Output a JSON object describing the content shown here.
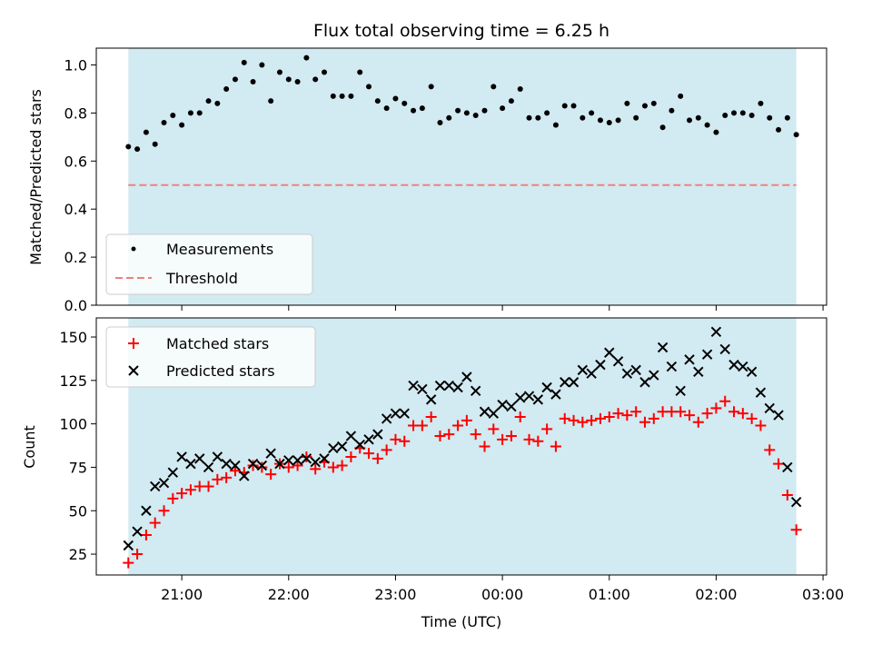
{
  "title": "Flux total observing time = 6.25 h",
  "colors": {
    "observing_band": "#add8e6",
    "measurement": "#000000",
    "threshold": "#f08080",
    "matched": "#ff0000",
    "predicted": "#000000"
  },
  "chart_data": [
    {
      "type": "scatter",
      "ylabel": "Matched/Predicted stars",
      "xlabel": "",
      "ylim": [
        0,
        1.07
      ],
      "yticks": [
        0.0,
        0.2,
        0.4,
        0.6,
        0.8,
        1.0
      ],
      "ytick_labels": [
        "0.0",
        "0.2",
        "0.4",
        "0.6",
        "0.8",
        "1.0"
      ],
      "legend_position": "lower-left",
      "threshold": 0.5,
      "series": [
        {
          "name": "Measurements",
          "marker": "dot",
          "x": [
            "20:30",
            "20:35",
            "20:40",
            "20:45",
            "20:50",
            "20:55",
            "21:00",
            "21:05",
            "21:10",
            "21:15",
            "21:20",
            "21:25",
            "21:30",
            "21:35",
            "21:40",
            "21:45",
            "21:50",
            "21:55",
            "22:00",
            "22:05",
            "22:10",
            "22:15",
            "22:20",
            "22:25",
            "22:30",
            "22:35",
            "22:40",
            "22:45",
            "22:50",
            "22:55",
            "23:00",
            "23:05",
            "23:10",
            "23:15",
            "23:20",
            "23:25",
            "23:30",
            "23:35",
            "23:40",
            "23:45",
            "23:50",
            "23:55",
            "00:00",
            "00:05",
            "00:10",
            "00:15",
            "00:20",
            "00:25",
            "00:30",
            "00:35",
            "00:40",
            "00:45",
            "00:50",
            "00:55",
            "01:00",
            "01:05",
            "01:10",
            "01:15",
            "01:20",
            "01:25",
            "01:30",
            "01:35",
            "01:40",
            "01:45",
            "01:50",
            "01:55",
            "02:00",
            "02:05",
            "02:10",
            "02:15",
            "02:20",
            "02:25",
            "02:30",
            "02:35",
            "02:40",
            "02:45"
          ],
          "y": [
            0.66,
            0.65,
            0.72,
            0.67,
            0.76,
            0.79,
            0.75,
            0.8,
            0.8,
            0.85,
            0.84,
            0.9,
            0.94,
            1.01,
            0.93,
            1.0,
            0.85,
            0.97,
            0.94,
            0.93,
            1.03,
            0.94,
            0.97,
            0.87,
            0.87,
            0.87,
            0.97,
            0.91,
            0.85,
            0.82,
            0.86,
            0.84,
            0.81,
            0.82,
            0.91,
            0.76,
            0.78,
            0.81,
            0.8,
            0.79,
            0.81,
            0.91,
            0.82,
            0.85,
            0.9,
            0.78,
            0.78,
            0.8,
            0.75,
            0.83,
            0.83,
            0.78,
            0.8,
            0.77,
            0.76,
            0.77,
            0.84,
            0.78,
            0.83,
            0.84,
            0.74,
            0.81,
            0.87,
            0.77,
            0.78,
            0.75,
            0.72,
            0.79,
            0.8,
            0.8,
            0.79,
            0.84,
            0.78,
            0.73,
            0.78,
            0.71
          ]
        },
        {
          "name": "Threshold",
          "line": "dashed",
          "x": [
            "20:30",
            "02:45"
          ],
          "y": [
            0.5,
            0.5
          ]
        }
      ]
    },
    {
      "type": "scatter",
      "ylabel": "Count",
      "xlabel": "Time (UTC)",
      "ylim": [
        13,
        161
      ],
      "yticks": [
        25,
        50,
        75,
        100,
        125,
        150
      ],
      "ytick_labels": [
        "25",
        "50",
        "75",
        "100",
        "125",
        "150"
      ],
      "xticks": [
        "21:00",
        "22:00",
        "23:00",
        "00:00",
        "01:00",
        "02:00",
        "03:00"
      ],
      "xlim": [
        "20:12",
        "03:02"
      ],
      "legend_position": "upper-left",
      "series": [
        {
          "name": "Matched stars",
          "marker": "plus",
          "x": [
            "20:30",
            "20:35",
            "20:40",
            "20:45",
            "20:50",
            "20:55",
            "21:00",
            "21:05",
            "21:10",
            "21:15",
            "21:20",
            "21:25",
            "21:30",
            "21:35",
            "21:40",
            "21:45",
            "21:50",
            "21:55",
            "22:00",
            "22:05",
            "22:10",
            "22:15",
            "22:20",
            "22:25",
            "22:30",
            "22:35",
            "22:40",
            "22:45",
            "22:50",
            "22:55",
            "23:00",
            "23:05",
            "23:10",
            "23:15",
            "23:20",
            "23:25",
            "23:30",
            "23:35",
            "23:40",
            "23:45",
            "23:50",
            "23:55",
            "00:00",
            "00:05",
            "00:10",
            "00:15",
            "00:20",
            "00:25",
            "00:30",
            "00:35",
            "00:40",
            "00:45",
            "00:50",
            "00:55",
            "01:00",
            "01:05",
            "01:10",
            "01:15",
            "01:20",
            "01:25",
            "01:30",
            "01:35",
            "01:40",
            "01:45",
            "01:50",
            "01:55",
            "02:00",
            "02:05",
            "02:10",
            "02:15",
            "02:20",
            "02:25",
            "02:30",
            "02:35",
            "02:40",
            "02:45"
          ],
          "y": [
            20,
            25,
            36,
            43,
            50,
            57,
            60,
            62,
            64,
            64,
            68,
            69,
            73,
            72,
            76,
            75,
            71,
            77,
            75,
            76,
            81,
            74,
            78,
            75,
            76,
            81,
            86,
            83,
            80,
            85,
            91,
            90,
            99,
            99,
            104,
            93,
            94,
            99,
            102,
            94,
            87,
            97,
            91,
            93,
            104,
            91,
            90,
            97,
            87,
            103,
            102,
            101,
            102,
            103,
            104,
            106,
            105,
            107,
            101,
            103,
            107,
            107,
            107,
            105,
            101,
            106,
            109,
            113,
            107,
            106,
            103,
            99,
            85,
            77,
            59,
            39
          ]
        },
        {
          "name": "Predicted stars",
          "marker": "x",
          "x": [
            "20:30",
            "20:35",
            "20:40",
            "20:45",
            "20:50",
            "20:55",
            "21:00",
            "21:05",
            "21:10",
            "21:15",
            "21:20",
            "21:25",
            "21:30",
            "21:35",
            "21:40",
            "21:45",
            "21:50",
            "21:55",
            "22:00",
            "22:05",
            "22:10",
            "22:15",
            "22:20",
            "22:25",
            "22:30",
            "22:35",
            "22:40",
            "22:45",
            "22:50",
            "22:55",
            "23:00",
            "23:05",
            "23:10",
            "23:15",
            "23:20",
            "23:25",
            "23:30",
            "23:35",
            "23:40",
            "23:45",
            "23:50",
            "23:55",
            "00:00",
            "00:05",
            "00:10",
            "00:15",
            "00:20",
            "00:25",
            "00:30",
            "00:35",
            "00:40",
            "00:45",
            "00:50",
            "00:55",
            "01:00",
            "01:05",
            "01:10",
            "01:15",
            "01:20",
            "01:25",
            "01:30",
            "01:35",
            "01:40",
            "01:45",
            "01:50",
            "01:55",
            "02:00",
            "02:05",
            "02:10",
            "02:15",
            "02:20",
            "02:25",
            "02:30",
            "02:35",
            "02:40",
            "02:45"
          ],
          "y": [
            30,
            38,
            50,
            64,
            66,
            72,
            81,
            77,
            80,
            75,
            81,
            77,
            76,
            70,
            77,
            76,
            83,
            77,
            79,
            79,
            80,
            78,
            80,
            86,
            87,
            93,
            88,
            91,
            94,
            103,
            106,
            106,
            122,
            120,
            114,
            122,
            122,
            121,
            127,
            119,
            107,
            106,
            111,
            110,
            115,
            116,
            114,
            121,
            117,
            124,
            124,
            131,
            129,
            134,
            141,
            136,
            129,
            131,
            124,
            128,
            144,
            133,
            119,
            137,
            130,
            140,
            153,
            143,
            134,
            133,
            130,
            118,
            109,
            105,
            75,
            55
          ]
        }
      ]
    }
  ]
}
